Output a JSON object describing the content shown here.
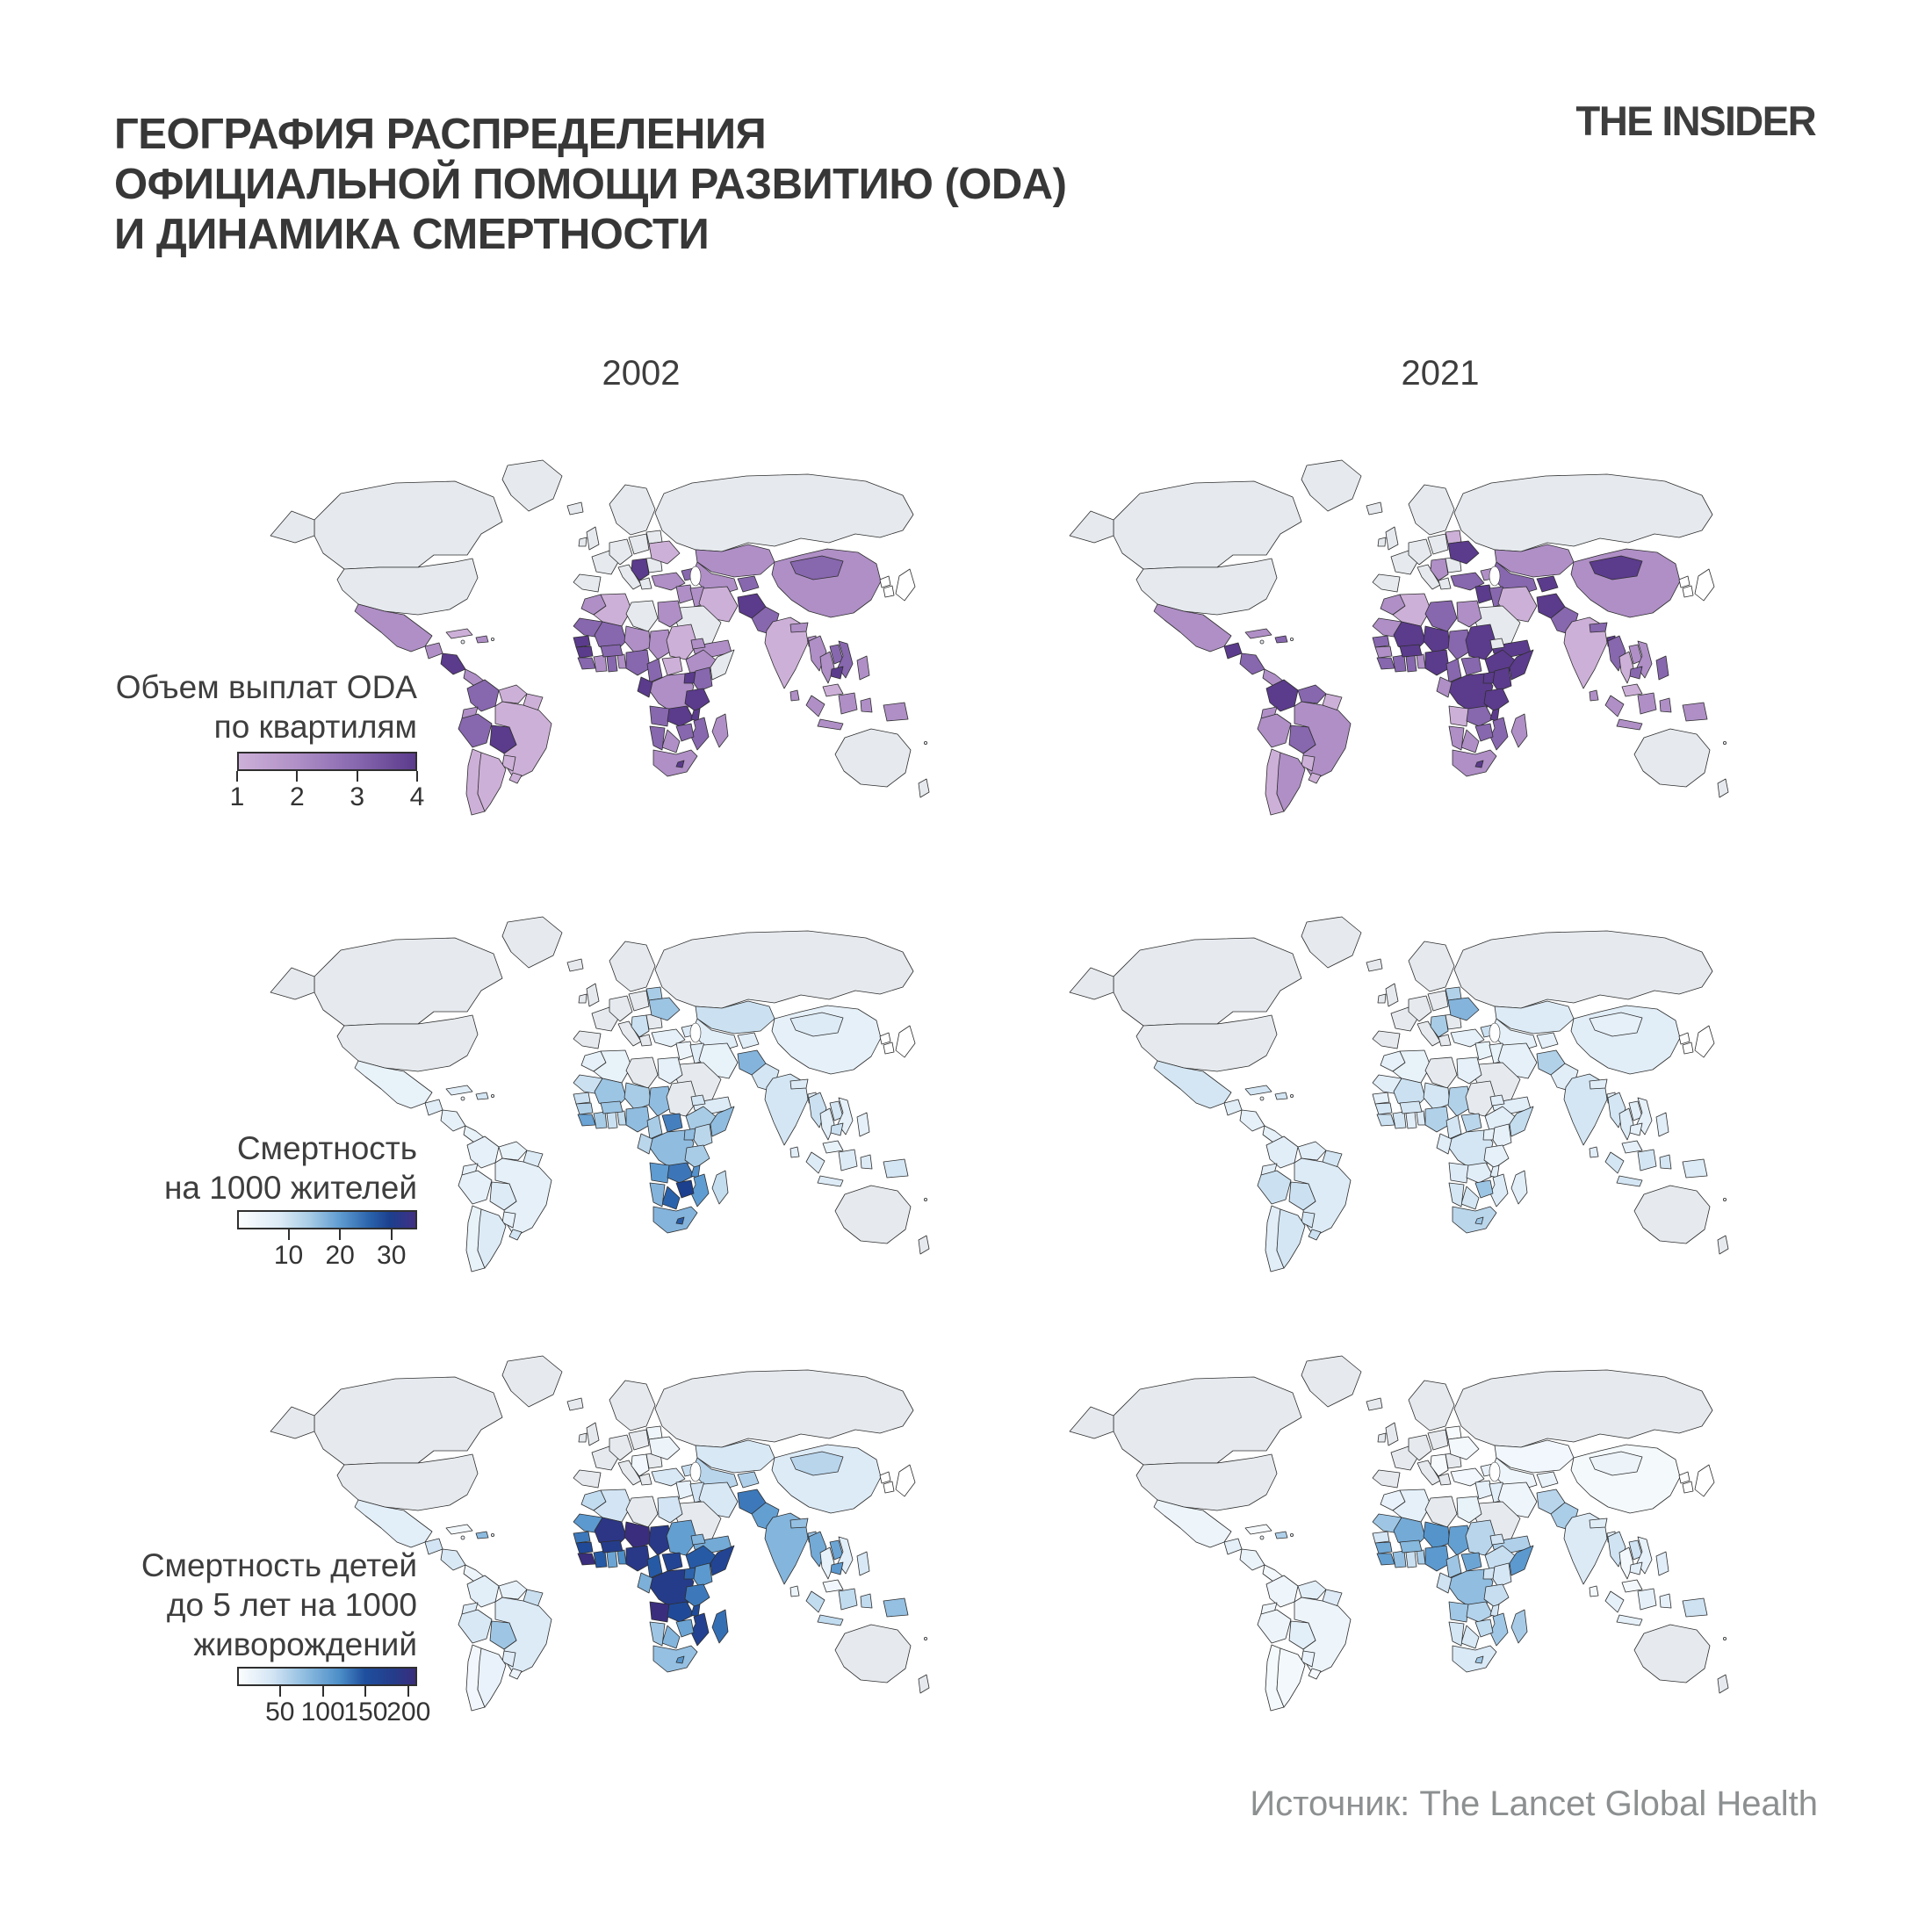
{
  "header": {
    "title_lines": [
      "ГЕОГРАФИЯ РАСПРЕДЕЛЕНИЯ",
      "ОФИЦИАЛЬНОЙ ПОМОЩИ РАЗВИТИЮ (ODA)",
      "И ДИНАМИКА СМЕРТНОСТИ"
    ],
    "brand": "THE INSIDER"
  },
  "columns": {
    "left_year": "2002",
    "right_year": "2021"
  },
  "rows": [
    {
      "id": "oda",
      "label_lines": [
        "Объем выплат ODA",
        "по квартилям"
      ],
      "legend": {
        "kind": "quartile",
        "tick_labels": [
          "1",
          "2",
          "3",
          "4"
        ],
        "colors": [
          "#cdb0d8",
          "#af8fc6",
          "#8767ae",
          "#5b3b8c"
        ]
      }
    },
    {
      "id": "mortality",
      "label_lines": [
        "Смертность",
        "на 1000 жителей"
      ],
      "legend": {
        "kind": "gradient",
        "domain": [
          0,
          35
        ],
        "ticks": [
          10,
          20,
          30
        ],
        "stops": [
          [
            0,
            "#fbfdfe"
          ],
          [
            8,
            "#ddebf6"
          ],
          [
            14,
            "#a8cce6"
          ],
          [
            20,
            "#5f9cd1"
          ],
          [
            26,
            "#2a62ab"
          ],
          [
            30,
            "#1c3f8e"
          ],
          [
            35,
            "#413084"
          ]
        ]
      }
    },
    {
      "id": "child_mortality",
      "label_lines": [
        "Смертность детей",
        "до 5 лет на 1000",
        "живорождений"
      ],
      "legend": {
        "kind": "gradient",
        "domain": [
          0,
          210
        ],
        "ticks": [
          50,
          100,
          150,
          200
        ],
        "stops": [
          [
            0,
            "#fbfdfe"
          ],
          [
            40,
            "#d3e5f4"
          ],
          [
            80,
            "#8cbbdf"
          ],
          [
            120,
            "#4c8ec8"
          ],
          [
            150,
            "#1e4f9e"
          ],
          [
            185,
            "#253c8a"
          ],
          [
            210,
            "#3a2d7d"
          ]
        ]
      }
    }
  ],
  "palette": {
    "no_data": "#e6eaee",
    "stroke": "#2e2e2e",
    "white_regions": [
      "japan",
      "korea_n",
      "korea_s"
    ],
    "title_color": "#373737",
    "footer_color": "#8d9091"
  },
  "footer": {
    "source": "Источник: The Lancet Global Health"
  },
  "chart_data": [
    {
      "row": "oda",
      "year": "2002",
      "type": "choropleth",
      "title": "Объем выплат ODA по квартилям, 2002",
      "scale": "quartiles 1-4, gray = not applicable",
      "values": {
        "mexico": 2,
        "guatemala": 2,
        "honduras_nicaragua": 4,
        "costarica_panama": 2,
        "cuba": 1,
        "hispaniola": 2,
        "colombia": 3,
        "venezuela": 1,
        "guyanas": 1,
        "ecuador": 2,
        "peru": 3,
        "bolivia": 4,
        "brazil": 1,
        "paraguay": 1,
        "uruguay": 1,
        "chile": 1,
        "argentina": 1,
        "serbia_balkans": 4,
        "ukraine": 1,
        "turkey": 2,
        "caucasus": 3,
        "syria_jordan": 2,
        "iraq": 2,
        "iran": 1,
        "yemen_oman": 2,
        "egypt": 2,
        "morocco": 2,
        "algeria": 1,
        "mauritania": 3,
        "mali": 3,
        "niger": 2,
        "chad": 2,
        "sudan": 1,
        "eritrea": 2,
        "ethiopia": 2,
        "senegal_gambia": 4,
        "guinea": 4,
        "sierra_liberia": 3,
        "cotedivoire": 2,
        "ghana": 3,
        "togo_benin": 2,
        "burkina": 3,
        "nigeria": 3,
        "cameroon": 3,
        "car": 1,
        "drc": 2,
        "congo_gabon": 4,
        "uganda": 4,
        "kenya": 3,
        "tanzania": 4,
        "angola": 3,
        "zambia": 4,
        "malawi": 4,
        "mozambique": 3,
        "zimbabwe": 3,
        "botswana": 2,
        "namibia": 3,
        "south_africa": 2,
        "lesotho": 4,
        "madagascar": 2,
        "kazakhstan": 2,
        "uzbek_turkmen": 2,
        "kyrgyz_tajik": 3,
        "afghanistan": 4,
        "pakistan": 3,
        "india": 1,
        "nepal_bhutan": 2,
        "bangladesh": 2,
        "srilanka": 2,
        "china": 2,
        "mongolia": 3,
        "myanmar": 2,
        "thailand": 2,
        "laos": 3,
        "vietnam": 3,
        "cambodia": 4,
        "malaysia": 1,
        "indonesia": 2,
        "png": 2,
        "philippines": 2
      }
    },
    {
      "row": "oda",
      "year": "2021",
      "type": "choropleth",
      "title": "Объем выплат ODA по квартилям, 2021",
      "scale": "quartiles 1-4, gray = not applicable",
      "values": {
        "mexico": 2,
        "guatemala": 4,
        "honduras_nicaragua": 3,
        "costarica_panama": 2,
        "cuba": 2,
        "hispaniola": 3,
        "colombia": 4,
        "venezuela": 3,
        "guyanas": 1,
        "ecuador": 2,
        "peru": 2,
        "bolivia": 3,
        "brazil": 2,
        "paraguay": 1,
        "uruguay": 1,
        "chile": 1,
        "argentina": 2,
        "serbia_balkans": 2,
        "belarus": 1,
        "ukraine": 4,
        "turkey": 3,
        "caucasus": 2,
        "syria_jordan": 4,
        "iraq": 3,
        "iran": 1,
        "yemen_oman": 4,
        "egypt": 2,
        "morocco": 2,
        "algeria": 1,
        "libya": 3,
        "mauritania": 2,
        "mali": 4,
        "niger": 4,
        "chad": 3,
        "sudan": 4,
        "ethiopia": 4,
        "somalia": 4,
        "senegal_gambia": 3,
        "guinea": 2,
        "sierra_liberia": 3,
        "cotedivoire": 3,
        "ghana": 3,
        "togo_benin": 2,
        "burkina": 4,
        "nigeria": 4,
        "cameroon": 3,
        "car": 3,
        "drc": 4,
        "congo_gabon": 2,
        "uganda": 4,
        "kenya": 4,
        "tanzania": 4,
        "angola": 1,
        "zambia": 3,
        "malawi": 4,
        "mozambique": 3,
        "zimbabwe": 3,
        "botswana": 2,
        "namibia": 2,
        "south_africa": 2,
        "lesotho": 4,
        "madagascar": 2,
        "kazakhstan": 2,
        "uzbek_turkmen": 3,
        "kyrgyz_tajik": 4,
        "afghanistan": 4,
        "pakistan": 3,
        "india": 1,
        "nepal_bhutan": 3,
        "bangladesh": 4,
        "srilanka": 2,
        "china": 2,
        "mongolia": 4,
        "myanmar": 3,
        "thailand": 1,
        "laos": 2,
        "vietnam": 2,
        "cambodia": 3,
        "malaysia": 1,
        "indonesia": 2,
        "png": 2,
        "philippines": 3
      }
    },
    {
      "row": "mortality",
      "year": "2002",
      "type": "choropleth",
      "title": "Смертность на 1000 жителей, 2002",
      "scale": "deaths per 1000, 0-35",
      "values": {
        "mexico": 5,
        "guatemala": 7,
        "honduras_nicaragua": 6,
        "costarica_panama": 5,
        "cuba": 7,
        "hispaniola": 9,
        "colombia": 6,
        "venezuela": 5,
        "guyanas": 8,
        "ecuador": 6,
        "peru": 6,
        "bolivia": 8,
        "brazil": 6,
        "paraguay": 6,
        "uruguay": 9,
        "chile": 5,
        "argentina": 8,
        "serbia_balkans": 10,
        "belarus": 14,
        "ukraine": 15,
        "turkey": 6,
        "caucasus": 8,
        "syria_jordan": 4,
        "iraq": 7,
        "iran": 5,
        "yemen_oman": 8,
        "egypt": 6,
        "morocco": 6,
        "algeria": 5,
        "mauritania": 10,
        "mali": 15,
        "niger": 14,
        "chad": 16,
        "eritrea": 9,
        "ethiopia": 14,
        "somalia": 16,
        "senegal_gambia": 10,
        "guinea": 13,
        "sierra_liberia": 19,
        "cotedivoire": 14,
        "ghana": 10,
        "togo_benin": 11,
        "burkina": 15,
        "nigeria": 16,
        "cameroon": 14,
        "car": 23,
        "drc": 16,
        "congo_gabon": 12,
        "uganda": 16,
        "kenya": 12,
        "tanzania": 14,
        "angola": 20,
        "zambia": 24,
        "malawi": 21,
        "mozambique": 20,
        "zimbabwe": 30,
        "botswana": 26,
        "namibia": 17,
        "south_africa": 17,
        "lesotho": 27,
        "madagascar": 11,
        "kazakhstan": 10,
        "uzbek_turkmen": 7,
        "kyrgyz_tajik": 7,
        "afghanistan": 17,
        "pakistan": 9,
        "india": 9,
        "nepal_bhutan": 8,
        "bangladesh": 7,
        "srilanka": 7,
        "china": 6,
        "mongolia": 8,
        "myanmar": 10,
        "thailand": 7,
        "laos": 9,
        "vietnam": 6,
        "cambodia": 10,
        "malaysia": 5,
        "indonesia": 8,
        "png": 9,
        "philippines": 6
      }
    },
    {
      "row": "mortality",
      "year": "2021",
      "type": "choropleth",
      "title": "Смертность на 1000 жителей, 2021",
      "scale": "deaths per 1000, 0-35",
      "values": {
        "mexico": 9,
        "guatemala": 7,
        "honduras_nicaragua": 6,
        "costarica_panama": 6,
        "cuba": 9,
        "hispaniola": 9,
        "colombia": 7,
        "venezuela": 7,
        "guyanas": 9,
        "ecuador": 7,
        "peru": 10,
        "bolivia": 10,
        "brazil": 8,
        "paraguay": 9,
        "uruguay": 10,
        "chile": 7,
        "argentina": 9,
        "serbia_balkans": 14,
        "belarus": 13,
        "ukraine": 17,
        "turkey": 6,
        "caucasus": 10,
        "syria_jordan": 5,
        "iraq": 5,
        "iran": 6,
        "yemen_oman": 7,
        "egypt": 6,
        "morocco": 6,
        "algeria": 5,
        "mauritania": 7,
        "mali": 10,
        "niger": 9,
        "chad": 13,
        "eritrea": 7,
        "ethiopia": 7,
        "somalia": 11,
        "senegal_gambia": 6,
        "guinea": 9,
        "sierra_liberia": 10,
        "cotedivoire": 9,
        "ghana": 7,
        "togo_benin": 8,
        "burkina": 9,
        "nigeria": 13,
        "cameroon": 9,
        "car": 12,
        "drc": 9,
        "congo_gabon": 7,
        "uganda": 6,
        "kenya": 6,
        "tanzania": 6,
        "angola": 8,
        "zambia": 7,
        "malawi": 7,
        "mozambique": 8,
        "zimbabwe": 15,
        "botswana": 9,
        "namibia": 9,
        "south_africa": 12,
        "lesotho": 15,
        "madagascar": 7,
        "kazakhstan": 8,
        "uzbek_turkmen": 6,
        "kyrgyz_tajik": 6,
        "afghanistan": 13,
        "pakistan": 7,
        "india": 9,
        "nepal_bhutan": 7,
        "bangladesh": 6,
        "srilanka": 7,
        "china": 7,
        "mongolia": 6,
        "myanmar": 9,
        "thailand": 8,
        "laos": 7,
        "vietnam": 6,
        "cambodia": 6,
        "malaysia": 6,
        "indonesia": 9,
        "png": 8,
        "philippines": 7
      }
    },
    {
      "row": "child_mortality",
      "year": "2002",
      "type": "choropleth",
      "title": "Смертность детей до 5 лет на 1000 живорождений, 2002",
      "scale": "per 1000 live births, 0-210+",
      "values": {
        "mexico": 25,
        "guatemala": 40,
        "honduras_nicaragua": 35,
        "costarica_panama": 14,
        "cuba": 8,
        "hispaniola": 80,
        "colombia": 25,
        "venezuela": 20,
        "guyanas": 45,
        "ecuador": 30,
        "peru": 35,
        "bolivia": 70,
        "brazil": 30,
        "paraguay": 28,
        "uruguay": 15,
        "chile": 10,
        "argentina": 18,
        "serbia_balkans": 10,
        "belarus": 12,
        "ukraine": 15,
        "turkey": 35,
        "caucasus": 45,
        "syria_jordan": 20,
        "iraq": 40,
        "iran": 35,
        "yemen_oman": 95,
        "egypt": 40,
        "morocco": 50,
        "algeria": 40,
        "mauritania": 110,
        "mali": 195,
        "niger": 210,
        "chad": 190,
        "sudan": 105,
        "eritrea": 85,
        "ethiopia": 145,
        "somalia": 170,
        "senegal_gambia": 130,
        "guinea": 160,
        "sierra_liberia": 230,
        "cotedivoire": 145,
        "ghana": 100,
        "togo_benin": 120,
        "burkina": 185,
        "nigeria": 190,
        "cameroon": 145,
        "car": 170,
        "drc": 185,
        "congo_gabon": 90,
        "uganda": 140,
        "kenya": 110,
        "tanzania": 130,
        "angola": 210,
        "zambia": 160,
        "malawi": 160,
        "mozambique": 175,
        "zimbabwe": 100,
        "botswana": 85,
        "namibia": 70,
        "south_africa": 75,
        "lesotho": 115,
        "madagascar": 135,
        "kazakhstan": 35,
        "uzbek_turkmen": 55,
        "kyrgyz_tajik": 60,
        "afghanistan": 130,
        "pakistan": 105,
        "india": 85,
        "nepal_bhutan": 75,
        "bangladesh": 75,
        "srilanka": 15,
        "china": 30,
        "mongolia": 55,
        "myanmar": 95,
        "thailand": 20,
        "laos": 100,
        "vietnam": 25,
        "cambodia": 110,
        "malaysia": 10,
        "indonesia": 50,
        "png": 75,
        "philippines": 35
      }
    },
    {
      "row": "child_mortality",
      "year": "2021",
      "type": "choropleth",
      "title": "Смертность детей до 5 лет на 1000 живорождений, 2021",
      "scale": "per 1000 live births, 0-210+",
      "values": {
        "mexico": 14,
        "guatemala": 23,
        "honduras_nicaragua": 17,
        "costarica_panama": 8,
        "cuba": 5,
        "hispaniola": 60,
        "colombia": 13,
        "venezuela": 24,
        "guyanas": 28,
        "ecuador": 13,
        "peru": 14,
        "bolivia": 25,
        "brazil": 14,
        "paraguay": 18,
        "uruguay": 6,
        "chile": 7,
        "argentina": 8,
        "serbia_balkans": 5,
        "belarus": 3,
        "ukraine": 8,
        "turkey": 10,
        "caucasus": 18,
        "syria_jordan": 22,
        "iraq": 25,
        "iran": 13,
        "yemen_oman": 60,
        "egypt": 19,
        "morocco": 18,
        "algeria": 22,
        "mauritania": 70,
        "mali": 95,
        "niger": 115,
        "chad": 105,
        "sudan": 55,
        "eritrea": 40,
        "ethiopia": 47,
        "somalia": 110,
        "senegal_gambia": 38,
        "guinea": 95,
        "sierra_liberia": 105,
        "cotedivoire": 75,
        "ghana": 45,
        "togo_benin": 63,
        "burkina": 83,
        "nigeria": 110,
        "cameroon": 70,
        "car": 100,
        "drc": 78,
        "congo_gabon": 42,
        "uganda": 41,
        "kenya": 38,
        "tanzania": 47,
        "angola": 69,
        "zambia": 58,
        "malawi": 40,
        "mozambique": 69,
        "zimbabwe": 50,
        "botswana": 34,
        "namibia": 39,
        "south_africa": 33,
        "lesotho": 70,
        "madagascar": 65,
        "kazakhstan": 10,
        "uzbek_turkmen": 13,
        "kyrgyz_tajik": 17,
        "afghanistan": 55,
        "pakistan": 63,
        "india": 31,
        "nepal_bhutan": 27,
        "bangladesh": 27,
        "srilanka": 7,
        "china": 7,
        "mongolia": 15,
        "myanmar": 42,
        "thailand": 8,
        "laos": 42,
        "vietnam": 20,
        "cambodia": 25,
        "malaysia": 8,
        "indonesia": 22,
        "png": 43,
        "philippines": 26
      }
    }
  ]
}
